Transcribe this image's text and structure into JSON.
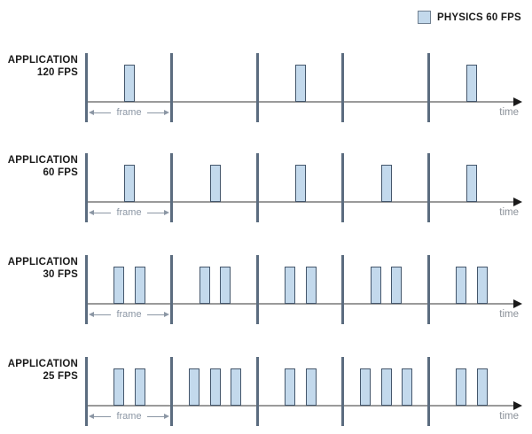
{
  "legend": {
    "label": "PHYSICS 60 FPS",
    "swatch_icon": "physics-step-swatch"
  },
  "colors": {
    "bar_fill": "#c3d9ec",
    "bar_border": "#44566b",
    "tick": "#5b6c7f",
    "axis": "#9a9a9a",
    "axis_arrow": "#1a1a1a",
    "annotation": "#8b96a4",
    "time_text": "#8b9199",
    "label_text": "#1a1a1a",
    "swatch_border": "#6f7f90"
  },
  "diagram": {
    "physics_rate_label": "PHYSICS 60 FPS",
    "frames_shown_per_row": 5,
    "rows": [
      {
        "label_line1": "APPLICATION",
        "label_line2": "120 FPS",
        "frame_label": "frame",
        "time_label": "time",
        "bars_per_frame": [
          1,
          0,
          1,
          0,
          1
        ]
      },
      {
        "label_line1": "APPLICATION",
        "label_line2": "60 FPS",
        "frame_label": "frame",
        "time_label": "time",
        "bars_per_frame": [
          1,
          1,
          1,
          1,
          1
        ]
      },
      {
        "label_line1": "APPLICATION",
        "label_line2": "30 FPS",
        "frame_label": "frame",
        "time_label": "time",
        "bars_per_frame": [
          2,
          2,
          2,
          2,
          2
        ]
      },
      {
        "label_line1": "APPLICATION",
        "label_line2": "25 FPS",
        "frame_label": "frame",
        "time_label": "time",
        "bars_per_frame": [
          2,
          3,
          2,
          3,
          2
        ]
      }
    ]
  }
}
